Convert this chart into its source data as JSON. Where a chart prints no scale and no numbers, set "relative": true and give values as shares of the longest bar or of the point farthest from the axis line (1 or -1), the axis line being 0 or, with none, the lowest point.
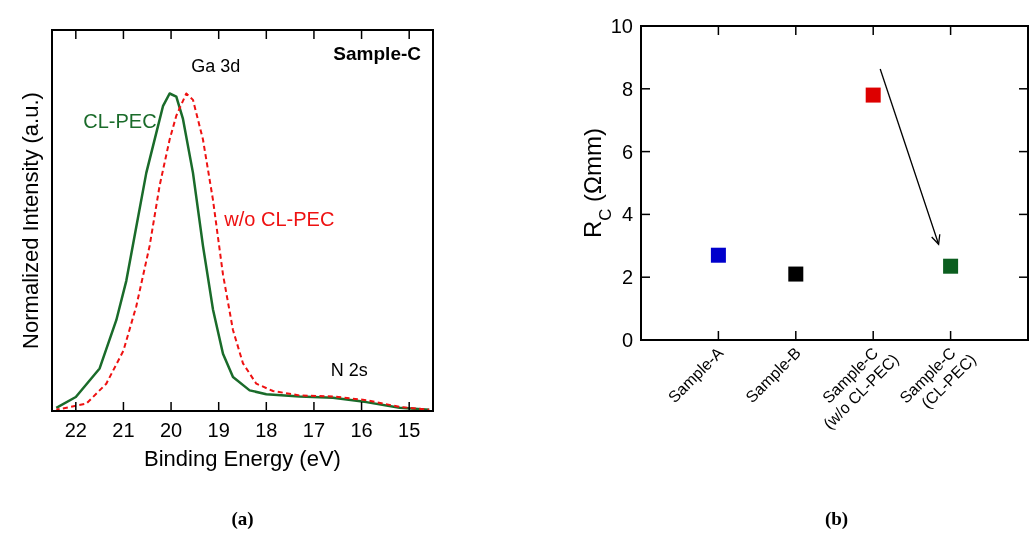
{
  "chart_data": [
    {
      "type": "line",
      "title": "(a)",
      "xlabel": "Binding Energy (eV)",
      "ylabel": "Normalized Intensity (a.u.)",
      "relative": true,
      "xlim": [
        22.5,
        14.5
      ],
      "xticks": [
        22,
        21,
        20,
        19,
        18,
        17,
        16,
        15
      ],
      "annotations": [
        "Sample-C",
        "Ga 3d",
        "N 2s"
      ],
      "series": [
        {
          "name": "CL-PEC",
          "color": "#1a6b2a",
          "line_style": "solid",
          "x": [
            22.41,
            22.0,
            21.5,
            21.15,
            20.94,
            20.73,
            20.52,
            20.31,
            20.17,
            20.03,
            19.89,
            19.75,
            19.54,
            19.33,
            19.12,
            18.91,
            18.7,
            18.35,
            18.0,
            17.3,
            16.6,
            15.9,
            15.2,
            14.58
          ],
          "values": [
            0.01,
            0.044,
            0.134,
            0.286,
            0.41,
            0.58,
            0.75,
            0.876,
            0.96,
            1.0,
            0.99,
            0.92,
            0.75,
            0.52,
            0.32,
            0.18,
            0.107,
            0.065,
            0.053,
            0.046,
            0.042,
            0.028,
            0.01,
            0.004
          ]
        },
        {
          "name": "w/o CL-PEC",
          "color": "#ee1111",
          "line_style": "dotted",
          "x": [
            22.41,
            21.78,
            21.36,
            21.0,
            20.73,
            20.45,
            20.24,
            20.03,
            19.89,
            19.68,
            19.54,
            19.33,
            19.12,
            18.91,
            18.7,
            18.49,
            18.21,
            17.86,
            17.3,
            16.6,
            15.9,
            15.2,
            14.58
          ],
          "values": [
            0.004,
            0.023,
            0.086,
            0.19,
            0.33,
            0.52,
            0.71,
            0.855,
            0.93,
            1.0,
            0.98,
            0.855,
            0.665,
            0.43,
            0.255,
            0.15,
            0.086,
            0.063,
            0.049,
            0.046,
            0.034,
            0.013,
            0.004
          ]
        }
      ]
    },
    {
      "type": "scatter",
      "title": "(b)",
      "ylabel": "R$_{C}$ (Ωmm)",
      "marker": "square",
      "categories": [
        "Sample-A",
        "Sample-B",
        "Sample-C\n(w/o CL-PEC)",
        "Sample-C\n(CL-PEC)"
      ],
      "values": [
        2.7,
        2.1,
        7.8,
        2.35
      ],
      "colors": [
        "#0000cc",
        "#000000",
        "#dd0000",
        "#0b5e1f"
      ],
      "ylim": [
        0,
        10
      ],
      "yticks": [
        0,
        2,
        4,
        6,
        8,
        10
      ]
    }
  ]
}
